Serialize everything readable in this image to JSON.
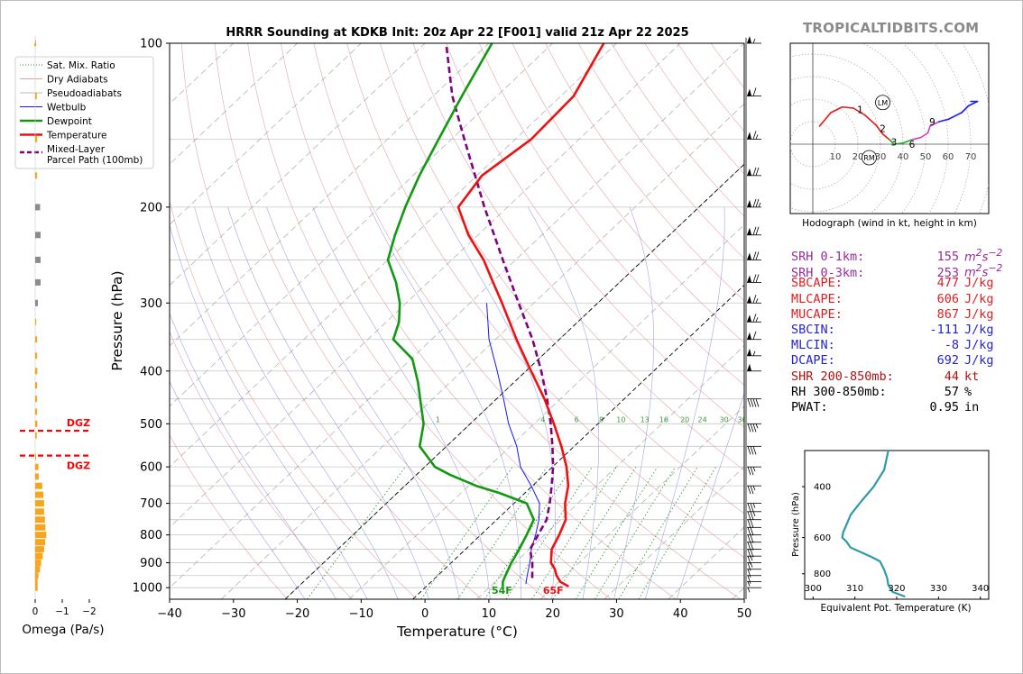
{
  "brand": "TROPICALTIDBITS.COM",
  "colors": {
    "temp": "#ee1111",
    "dew": "#119911",
    "parcel": "#800080",
    "wetbulb": "#1515ff",
    "dry": "#d98080",
    "moist": "#8d8dd9",
    "mix": "#3c9a3c",
    "omega_pos": "#f7a51c",
    "omega_neg": "#8c8c8c",
    "dgz": "#ff0000",
    "theta_e": "#2e9aaa"
  },
  "skewt": {
    "title": "HRRR Sounding at KDKB Init: 20z Apr 22 [F001] valid 21z Apr 22 2025",
    "xlabel": "Temperature (°C)",
    "ylabel": "Pressure (hPa)",
    "x_ticks": [
      "−40",
      "−30",
      "−20",
      "−10",
      "0",
      "10",
      "20",
      "30",
      "40",
      "50"
    ],
    "y_ticks": [
      "100",
      "200",
      "300",
      "400",
      "500",
      "600",
      "700",
      "800",
      "900",
      "1000"
    ],
    "surface_temp_label": "65F",
    "surface_dew_label": "54F",
    "mix_labels": [
      "1",
      "4",
      "6",
      "8",
      "10",
      "13",
      "16",
      "20",
      "24",
      "30",
      "36"
    ]
  },
  "legend": {
    "items": [
      "Sat. Mix. Ratio",
      "Dry Adiabats",
      "Pseudoadiabats",
      "Wetbulb",
      "Dewpoint",
      "Temperature",
      "Mixed-Layer\nParcel Path (100mb)"
    ]
  },
  "omega": {
    "xlabel": "Omega (Pa/s)",
    "x_ticks": [
      "0",
      "−1",
      "−2"
    ],
    "dgz_label": "DGZ"
  },
  "hodograph": {
    "caption": "Hodograph (wind in kt, height in km)",
    "ring_labels": [
      "10",
      "20",
      "30",
      "40",
      "50",
      "60",
      "70"
    ],
    "height_labels": [
      "1",
      "2",
      "3",
      "6",
      "9"
    ],
    "markers": [
      "LM",
      "RM"
    ]
  },
  "indices": [
    {
      "name": "SRH 0-1km:",
      "value": "155",
      "unit_html": "m<sup>2</sup>s<sup>−2</sup>",
      "color": "#9a2a9a",
      "italic": true
    },
    {
      "name": "SRH 0-3km:",
      "value": "253",
      "unit_html": "m<sup>2</sup>s<sup>−2</sup>",
      "color": "#9a2a9a",
      "italic": true
    },
    {
      "name": "SBCAPE:",
      "value": "477",
      "unit": "J/kg",
      "color": "#e02020"
    },
    {
      "name": "MLCAPE:",
      "value": "606",
      "unit": "J/kg",
      "color": "#e02020"
    },
    {
      "name": "MUCAPE:",
      "value": "867",
      "unit": "J/kg",
      "color": "#e02020"
    },
    {
      "name": "SBCIN:",
      "value": "-111",
      "unit": "J/kg",
      "color": "#2424cc"
    },
    {
      "name": "MLCIN:",
      "value": "-8",
      "unit": "J/kg",
      "color": "#2424cc"
    },
    {
      "name": "DCAPE:",
      "value": "692",
      "unit": "J/kg",
      "color": "#2424cc"
    },
    {
      "name": "SHR 200-850mb:",
      "value": "44",
      "unit": "kt",
      "color": "#b01010"
    },
    {
      "name": "RH 300-850mb:",
      "value": "57",
      "unit": "%",
      "color": "#000000"
    },
    {
      "name": "PWAT:",
      "value": "0.95",
      "unit": "in",
      "color": "#000000"
    }
  ],
  "theta_e": {
    "xlabel": "Equivalent Pot. Temperature (K)",
    "ylabel": "Pressure (hPa)",
    "x_ticks": [
      "300",
      "310",
      "320",
      "330",
      "340"
    ],
    "y_ticks": [
      "400",
      "600",
      "800"
    ]
  },
  "chart_data": [
    {
      "type": "line",
      "title": "HRRR Sounding at KDKB Init: 20z Apr 22 [F001] valid 21z Apr 22 2025",
      "xlabel": "Temperature (°C)",
      "ylabel": "Pressure (hPa)",
      "xlim": [
        -40,
        50
      ],
      "ylim": [
        1050,
        100
      ],
      "y_scale": "log",
      "skew_x_per_decade_deg": 90,
      "series": [
        {
          "name": "Temperature",
          "points": [
            [
              995,
              22.3
            ],
            [
              975,
              20.2
            ],
            [
              950,
              18.6
            ],
            [
              925,
              17.3
            ],
            [
              900,
              15.6
            ],
            [
              850,
              13.5
            ],
            [
              800,
              12.3
            ],
            [
              750,
              10.8
            ],
            [
              700,
              8.0
            ],
            [
              650,
              5.6
            ],
            [
              600,
              2.2
            ],
            [
              550,
              -2.0
            ],
            [
              500,
              -6.9
            ],
            [
              450,
              -12.5
            ],
            [
              400,
              -19.2
            ],
            [
              350,
              -26.7
            ],
            [
              300,
              -35.0
            ],
            [
              275,
              -39.8
            ],
            [
              250,
              -45.0
            ],
            [
              225,
              -51.5
            ],
            [
              200,
              -57.7
            ],
            [
              175,
              -59.2
            ],
            [
              150,
              -57.5
            ],
            [
              125,
              -58.0
            ],
            [
              100,
              -62.0
            ]
          ]
        },
        {
          "name": "Dewpoint",
          "points": [
            [
              995,
              12.0
            ],
            [
              975,
              11.2
            ],
            [
              950,
              10.6
            ],
            [
              900,
              9.4
            ],
            [
              850,
              8.4
            ],
            [
              800,
              7.2
            ],
            [
              750,
              5.8
            ],
            [
              700,
              2.0
            ],
            [
              670,
              -4.0
            ],
            [
              650,
              -8.8
            ],
            [
              620,
              -14.8
            ],
            [
              600,
              -18.4
            ],
            [
              550,
              -24.2
            ],
            [
              500,
              -27.3
            ],
            [
              460,
              -31.0
            ],
            [
              420,
              -35.0
            ],
            [
              380,
              -39.8
            ],
            [
              350,
              -46.0
            ],
            [
              325,
              -48.0
            ],
            [
              300,
              -51.0
            ],
            [
              275,
              -55.0
            ],
            [
              250,
              -60.0
            ],
            [
              225,
              -63.0
            ],
            [
              200,
              -66.0
            ],
            [
              175,
              -69.0
            ],
            [
              150,
              -72.0
            ],
            [
              125,
              -75.5
            ],
            [
              100,
              -79.5
            ]
          ]
        },
        {
          "name": "Wetbulb",
          "points": [
            [
              985,
              15.2
            ],
            [
              950,
              14.0
            ],
            [
              900,
              12.3
            ],
            [
              850,
              10.3
            ],
            [
              800,
              8.6
            ],
            [
              750,
              6.6
            ],
            [
              700,
              4.0
            ],
            [
              650,
              -0.2
            ],
            [
              600,
              -5.0
            ],
            [
              550,
              -9.0
            ],
            [
              500,
              -14.0
            ],
            [
              450,
              -18.9
            ],
            [
              400,
              -24.5
            ],
            [
              350,
              -31.0
            ],
            [
              300,
              -37.4
            ]
          ]
        },
        {
          "name": "Mixed-Layer Parcel Path (100mb)",
          "points": [
            [
              960,
              15.2
            ],
            [
              900,
              12.7
            ],
            [
              850,
              10.1
            ],
            [
              800,
              9.0
            ],
            [
              750,
              7.8
            ],
            [
              700,
              5.6
            ],
            [
              650,
              3.0
            ],
            [
              600,
              0.1
            ],
            [
              550,
              -3.4
            ],
            [
              500,
              -7.4
            ],
            [
              450,
              -12.1
            ],
            [
              400,
              -17.6
            ],
            [
              350,
              -24.2
            ],
            [
              300,
              -32.4
            ],
            [
              250,
              -42.0
            ],
            [
              200,
              -53.6
            ],
            [
              150,
              -68.0
            ],
            [
              125,
              -77.0
            ],
            [
              100,
              -86.7
            ]
          ]
        }
      ],
      "annotations": [
        "65F",
        "54F"
      ]
    },
    {
      "type": "bar",
      "title": "",
      "xlabel": "Omega (Pa/s)",
      "ylabel": "",
      "xlim": [
        0.7,
        -2.3
      ],
      "pressure": [
        1000,
        975,
        950,
        925,
        900,
        875,
        850,
        825,
        800,
        775,
        750,
        725,
        700,
        675,
        650,
        625,
        600,
        575,
        550,
        525,
        500,
        475,
        450,
        425,
        400,
        375,
        350,
        325,
        300,
        275,
        250,
        225,
        200,
        175,
        150,
        125,
        100
      ],
      "values": [
        0.09,
        0.09,
        0.12,
        0.18,
        0.22,
        0.28,
        0.33,
        0.37,
        0.41,
        0.38,
        0.36,
        0.33,
        0.33,
        0.3,
        0.26,
        0.13,
        0.12,
        0.02,
        0.0,
        0.06,
        0.08,
        0.07,
        0.07,
        0.07,
        0.08,
        0.07,
        0.07,
        0.04,
        -0.1,
        -0.2,
        -0.2,
        -0.2,
        -0.18,
        0.07,
        0.07,
        0.06,
        0.03
      ],
      "dgz_pressure": [
        515,
        572
      ]
    },
    {
      "type": "line",
      "title": "",
      "xlabel": "",
      "ylabel": "",
      "xlim": [
        -10,
        78
      ],
      "ylim": [
        -30,
        45
      ],
      "series": [
        {
          "name": "Hodograph",
          "points": [
            [
              3,
              8
            ],
            [
              8,
              14
            ],
            [
              13,
              16.5
            ],
            [
              18,
              16
            ],
            [
              23,
              13
            ],
            [
              28,
              8.5
            ],
            [
              31,
              4.5
            ],
            [
              34,
              2
            ],
            [
              36,
              0
            ],
            [
              40,
              0.5
            ],
            [
              44,
              2
            ],
            [
              48,
              3
            ],
            [
              51,
              5
            ],
            [
              52,
              8
            ],
            [
              56,
              10
            ],
            [
              60,
              11
            ],
            [
              66,
              14
            ],
            [
              69,
              17
            ],
            [
              73,
              19
            ],
            [
              70,
              19
            ]
          ]
        }
      ],
      "height_labels": [
        "1",
        "2",
        "3",
        "6",
        "9"
      ],
      "markers": [
        "LM",
        "RM"
      ]
    },
    {
      "type": "line",
      "title": "",
      "xlabel": "Equivalent Pot. Temperature (K)",
      "ylabel": "Pressure (hPa)",
      "xlim": [
        300,
        342
      ],
      "ylim": [
        960,
        300
      ],
      "series": [
        {
          "name": "Equivalent Pot. Temperature",
          "points": [
            [
              960,
              322
            ],
            [
              925,
              319
            ],
            [
              875,
              318
            ],
            [
              825,
              317.7
            ],
            [
              775,
              317
            ],
            [
              725,
              316
            ],
            [
              700,
              314
            ],
            [
              650,
              309
            ],
            [
              620,
              308
            ],
            [
              600,
              307
            ],
            [
              575,
              307.2
            ],
            [
              550,
              307.8
            ],
            [
              500,
              309
            ],
            [
              450,
              311.5
            ],
            [
              400,
              314.5
            ],
            [
              350,
              317
            ],
            [
              300,
              318
            ]
          ]
        }
      ]
    }
  ]
}
